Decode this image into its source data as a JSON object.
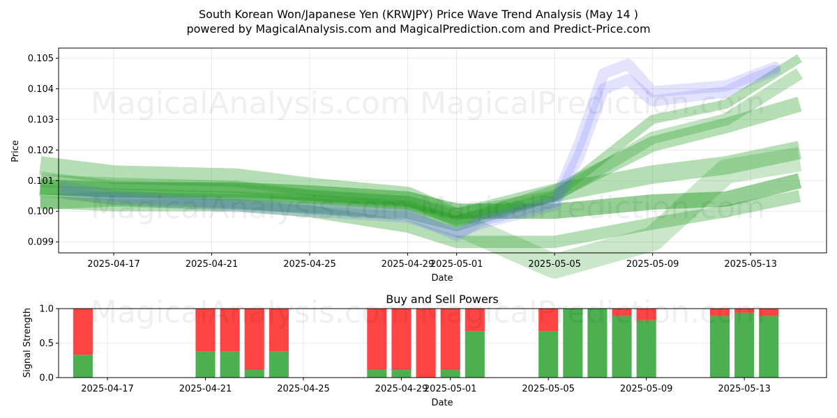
{
  "title_line1": "South Korean Won/Japanese Yen (KRWJPY) Price Wave Trend Analysis (May 14 )",
  "title_line2": "powered by MagicalAnalysis.com and MagicalPrediction.com and Predict-Price.com",
  "watermarks": [
    "MagicalAnalysis.com",
    "MagicalPrediction.com"
  ],
  "colors": {
    "green_band": "#2ca02c",
    "blue_band": "#6666ff",
    "buy": "#4caf50",
    "sell": "#ff4444"
  },
  "chart_data": [
    {
      "type": "area",
      "title": "",
      "xlabel": "Date",
      "ylabel": "Price",
      "x_ticks": [
        "2025-04-17",
        "2025-04-21",
        "2025-04-25",
        "2025-04-29",
        "2025-05-01",
        "2025-05-05",
        "2025-05-09",
        "2025-05-13"
      ],
      "y_ticks": [
        "0.099",
        "0.100",
        "0.101",
        "0.102",
        "0.103",
        "0.104",
        "0.105"
      ],
      "ylim": [
        0.09864,
        0.10533
      ],
      "xlim": [
        "2025-04-14",
        "2025-05-16"
      ],
      "grid": true,
      "blue_series": [
        {
          "name": "",
          "dates": [
            "2025-04-15",
            "2025-04-17",
            "2025-04-21",
            "2025-04-25",
            "2025-04-29",
            "2025-05-01",
            "2025-05-02",
            "2025-05-05",
            "2025-05-06",
            "2025-05-07",
            "2025-05-08",
            "2025-05-09",
            "2025-05-12",
            "2025-05-13",
            "2025-05-14"
          ],
          "values": [
            0.1008,
            0.1005,
            0.1003,
            0.1001,
            0.0999,
            0.0992,
            0.0997,
            0.1003,
            0.1022,
            0.1045,
            0.1048,
            0.1039,
            0.1041,
            0.1044,
            0.1047
          ]
        },
        {
          "name": "",
          "dates": [
            "2025-04-15",
            "2025-04-17",
            "2025-04-21",
            "2025-04-25",
            "2025-04-29",
            "2025-05-01",
            "2025-05-02",
            "2025-05-05",
            "2025-05-06",
            "2025-05-07",
            "2025-05-08",
            "2025-05-09",
            "2025-05-12",
            "2025-05-13",
            "2025-05-14"
          ],
          "values": [
            0.1006,
            0.1004,
            0.1002,
            0.1,
            0.0998,
            0.0993,
            0.0996,
            0.1002,
            0.1018,
            0.104,
            0.1043,
            0.1036,
            0.1039,
            0.1043,
            0.1046
          ]
        }
      ],
      "green_series": [
        {
          "name": "",
          "dates": [
            "2025-04-14",
            "2025-04-17",
            "2025-04-22",
            "2025-04-25",
            "2025-04-29",
            "2025-05-01",
            "2025-05-05",
            "2025-05-09",
            "2025-05-12",
            "2025-05-15"
          ],
          "values": [
            0.1007,
            0.1006,
            0.1005,
            0.1004,
            0.1002,
            0.0997,
            0.1005,
            0.103,
            0.1035,
            0.105
          ],
          "width": 0.0003,
          "alpha": 0.35
        },
        {
          "name": "",
          "dates": [
            "2025-04-14",
            "2025-04-17",
            "2025-04-22",
            "2025-04-25",
            "2025-04-29",
            "2025-05-01",
            "2025-05-05",
            "2025-05-09",
            "2025-05-12",
            "2025-05-15"
          ],
          "values": [
            0.1003,
            0.1004,
            0.1003,
            0.1002,
            0.1,
            0.0996,
            0.1006,
            0.1022,
            0.1028,
            0.1035
          ],
          "width": 0.0005,
          "alpha": 0.35
        },
        {
          "name": "",
          "dates": [
            "2025-04-14",
            "2025-04-17",
            "2025-04-22",
            "2025-04-25",
            "2025-04-29",
            "2025-05-01",
            "2025-05-05",
            "2025-05-09",
            "2025-05-12",
            "2025-05-15"
          ],
          "values": [
            0.1015,
            0.1012,
            0.1011,
            0.1008,
            0.1005,
            0.0998,
            0.1006,
            0.1012,
            0.1015,
            0.102
          ],
          "width": 0.0006,
          "alpha": 0.35
        },
        {
          "name": "",
          "dates": [
            "2025-04-14",
            "2025-04-17",
            "2025-04-22",
            "2025-04-25",
            "2025-04-29",
            "2025-05-01",
            "2025-05-05",
            "2025-05-09",
            "2025-05-12",
            "2025-05-15"
          ],
          "values": [
            0.1008,
            0.1007,
            0.1007,
            0.1006,
            0.1004,
            0.1,
            0.1,
            0.1003,
            0.1004,
            0.101
          ],
          "width": 0.0005,
          "alpha": 0.5
        },
        {
          "name": "",
          "dates": [
            "2025-04-14",
            "2025-04-17",
            "2025-04-22",
            "2025-04-25",
            "2025-04-29",
            "2025-05-01",
            "2025-05-05",
            "2025-05-09",
            "2025-05-12",
            "2025-05-15"
          ],
          "values": [
            0.1003,
            0.1002,
            0.1002,
            0.1,
            0.0995,
            0.099,
            0.099,
            0.0996,
            0.1,
            0.1005
          ],
          "width": 0.0004,
          "alpha": 0.35
        },
        {
          "name": "",
          "dates": [
            "2025-04-14",
            "2025-04-17",
            "2025-04-22",
            "2025-04-25",
            "2025-04-29",
            "2025-05-01",
            "2025-05-05",
            "2025-05-09",
            "2025-05-12",
            "2025-05-15"
          ],
          "values": [
            0.101,
            0.1009,
            0.1008,
            0.1005,
            0.1003,
            0.0999,
            0.1005,
            0.1024,
            0.103,
            0.1045
          ],
          "width": 0.0004,
          "alpha": 0.3
        },
        {
          "name": "",
          "dates": [
            "2025-04-14",
            "2025-04-17",
            "2025-04-22",
            "2025-04-25",
            "2025-04-29",
            "2025-05-01",
            "2025-05-05",
            "2025-05-09",
            "2025-05-12",
            "2025-05-15"
          ],
          "values": [
            0.1009,
            0.1006,
            0.1005,
            0.1003,
            0.1001,
            0.0996,
            0.0982,
            0.0991,
            0.1013,
            0.1017
          ],
          "width": 0.0008,
          "alpha": 0.25
        }
      ]
    },
    {
      "type": "bar",
      "title": "Buy and Sell Powers",
      "xlabel": "Date",
      "ylabel": "Signal Strength",
      "ylim": [
        0,
        1
      ],
      "y_ticks": [
        "0.0",
        "0.5",
        "1.0"
      ],
      "x_ticks": [
        "2025-04-17",
        "2025-04-21",
        "2025-04-25",
        "2025-04-29",
        "2025-05-01",
        "2025-05-05",
        "2025-05-09",
        "2025-05-13"
      ],
      "dates": [
        "2025-04-16",
        "2025-04-21",
        "2025-04-22",
        "2025-04-23",
        "2025-04-24",
        "2025-04-28",
        "2025-04-29",
        "2025-04-30",
        "2025-05-01",
        "2025-05-02",
        "2025-05-05",
        "2025-05-06",
        "2025-05-07",
        "2025-05-08",
        "2025-05-09",
        "2025-05-12",
        "2025-05-13",
        "2025-05-14"
      ],
      "series": [
        {
          "name": "Buy",
          "values": [
            0.33,
            0.38,
            0.38,
            0.11,
            0.38,
            0.11,
            0.11,
            0.0,
            0.11,
            0.67,
            0.67,
            1.0,
            1.0,
            0.89,
            0.83,
            0.89,
            0.94,
            0.89
          ]
        },
        {
          "name": "Sell",
          "values": [
            0.67,
            0.62,
            0.62,
            0.89,
            0.62,
            0.89,
            0.89,
            1.0,
            0.89,
            0.33,
            0.33,
            0.0,
            0.0,
            0.11,
            0.17,
            0.11,
            0.06,
            0.11
          ]
        }
      ]
    }
  ]
}
